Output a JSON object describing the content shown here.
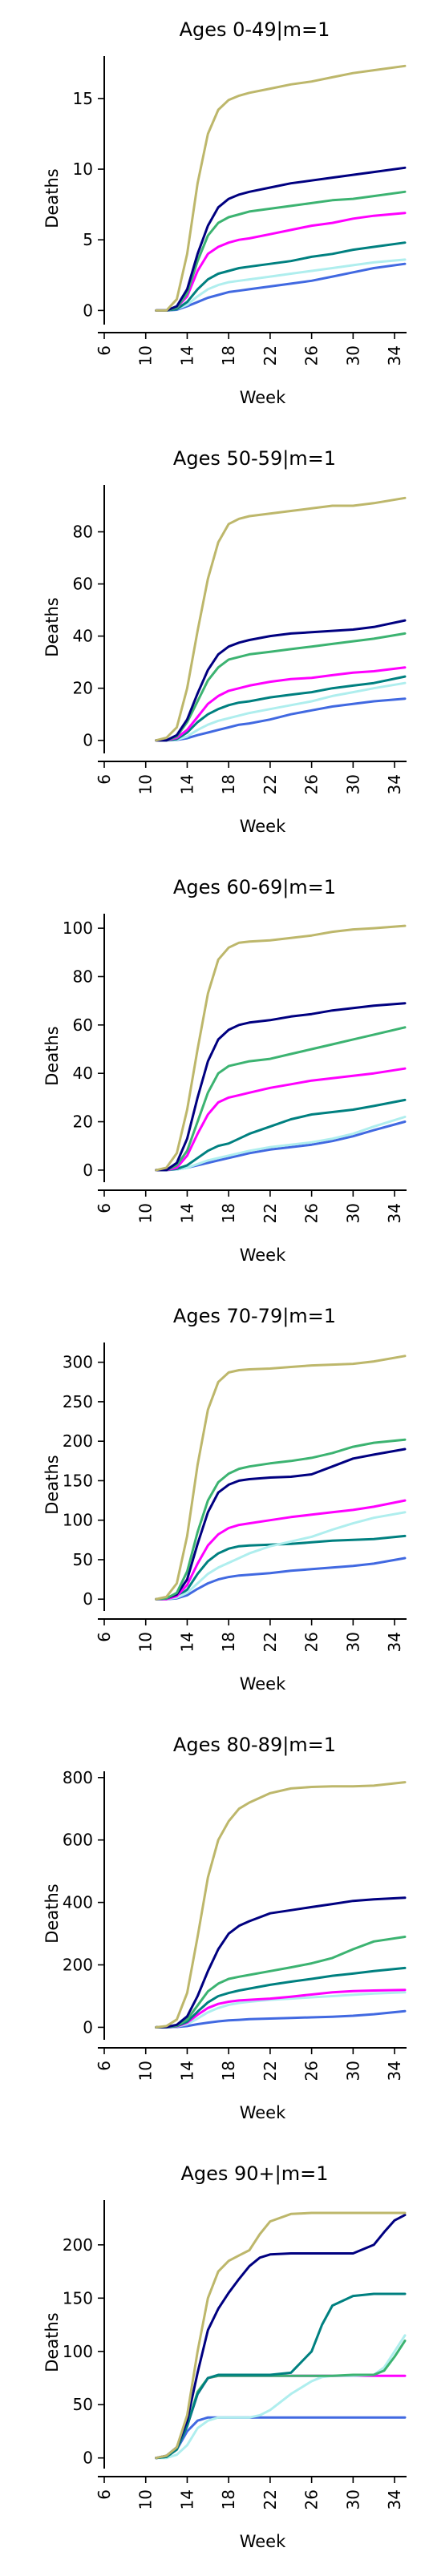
{
  "chart_data": [
    {
      "type": "line",
      "title": "Ages 0-49|m=1",
      "xlabel": "Week",
      "ylabel": "Deaths",
      "xlim": [
        6,
        35
      ],
      "ylim": [
        -1,
        18
      ],
      "xticks": [
        "6",
        "10",
        "14",
        "18",
        "22",
        "26",
        "30",
        "34"
      ],
      "yticks": [
        0,
        5,
        10,
        15
      ],
      "x": [
        11,
        12,
        13,
        14,
        15,
        16,
        17,
        18,
        19,
        20,
        22,
        24,
        26,
        28,
        30,
        32,
        35
      ],
      "series": [
        {
          "color": "#bdb76b",
          "values": [
            0,
            0,
            0.8,
            4.0,
            9.0,
            12.5,
            14.2,
            14.9,
            15.2,
            15.4,
            15.7,
            16.0,
            16.2,
            16.5,
            16.8,
            17.0,
            17.3
          ]
        },
        {
          "color": "#000080",
          "values": [
            0,
            0,
            0.3,
            1.5,
            4.0,
            6.0,
            7.3,
            7.9,
            8.2,
            8.4,
            8.7,
            9.0,
            9.2,
            9.4,
            9.6,
            9.8,
            10.1
          ]
        },
        {
          "color": "#3cb371",
          "values": [
            0,
            0,
            0.2,
            1.2,
            3.5,
            5.3,
            6.2,
            6.6,
            6.8,
            7.0,
            7.2,
            7.4,
            7.6,
            7.8,
            7.9,
            8.1,
            8.4
          ]
        },
        {
          "color": "#ff00ff",
          "values": [
            0,
            0,
            0.2,
            1.0,
            2.8,
            4.0,
            4.5,
            4.8,
            5.0,
            5.1,
            5.4,
            5.7,
            6.0,
            6.2,
            6.5,
            6.7,
            6.9
          ]
        },
        {
          "color": "#008080",
          "values": [
            0,
            0,
            0.1,
            0.6,
            1.5,
            2.2,
            2.6,
            2.8,
            3.0,
            3.1,
            3.3,
            3.5,
            3.8,
            4.0,
            4.3,
            4.5,
            4.8
          ]
        },
        {
          "color": "#afeeee",
          "values": [
            0,
            0,
            0.1,
            0.4,
            1.0,
            1.5,
            1.8,
            2.0,
            2.1,
            2.2,
            2.4,
            2.6,
            2.8,
            3.0,
            3.2,
            3.4,
            3.6
          ]
        },
        {
          "color": "#4169e1",
          "values": [
            0,
            0,
            0.05,
            0.3,
            0.6,
            0.9,
            1.1,
            1.3,
            1.4,
            1.5,
            1.7,
            1.9,
            2.1,
            2.4,
            2.7,
            3.0,
            3.3
          ]
        }
      ]
    },
    {
      "type": "line",
      "title": "Ages 50-59|m=1",
      "xlabel": "Week",
      "ylabel": "Deaths",
      "xlim": [
        6,
        35
      ],
      "ylim": [
        -5,
        98
      ],
      "xticks": [
        "6",
        "10",
        "14",
        "18",
        "22",
        "26",
        "30",
        "34"
      ],
      "yticks": [
        0,
        20,
        40,
        60,
        80
      ],
      "x": [
        11,
        12,
        13,
        14,
        15,
        16,
        17,
        18,
        19,
        20,
        22,
        24,
        26,
        28,
        30,
        32,
        35
      ],
      "series": [
        {
          "color": "#bdb76b",
          "values": [
            0,
            1,
            5,
            20,
            42,
            62,
            76,
            83,
            85,
            86,
            87,
            88,
            89,
            90,
            90,
            91,
            93
          ]
        },
        {
          "color": "#000080",
          "values": [
            0,
            0,
            2,
            8,
            18,
            27,
            33,
            36,
            37.5,
            38.5,
            40,
            41,
            41.5,
            42,
            42.5,
            43.5,
            46
          ]
        },
        {
          "color": "#3cb371",
          "values": [
            0,
            0,
            1.5,
            7,
            15,
            23,
            28,
            31,
            32,
            33,
            34,
            35,
            36,
            37,
            38,
            39,
            41
          ]
        },
        {
          "color": "#ff00ff",
          "values": [
            0,
            0,
            1,
            4,
            9,
            14,
            17,
            19,
            20,
            21,
            22.5,
            23.5,
            24,
            25,
            26,
            26.5,
            28
          ]
        },
        {
          "color": "#008080",
          "values": [
            0,
            0,
            0.5,
            3,
            7,
            10,
            12,
            13.5,
            14.5,
            15,
            16.5,
            17.5,
            18.5,
            20,
            21,
            22,
            24.5
          ]
        },
        {
          "color": "#afeeee",
          "values": [
            0,
            0,
            0.3,
            1.5,
            4,
            6,
            7.5,
            8.5,
            9.5,
            10.5,
            12,
            13.5,
            15,
            17,
            18.5,
            20,
            22
          ]
        },
        {
          "color": "#4169e1",
          "values": [
            0,
            0,
            0.2,
            0.8,
            2,
            3,
            4,
            5,
            6,
            6.5,
            8,
            10,
            11.5,
            13,
            14,
            15,
            16
          ]
        }
      ]
    },
    {
      "type": "line",
      "title": "Ages 60-69|m=1",
      "xlabel": "Week",
      "ylabel": "Deaths",
      "xlim": [
        6,
        35
      ],
      "ylim": [
        -5,
        106
      ],
      "xticks": [
        "6",
        "10",
        "14",
        "18",
        "22",
        "26",
        "30",
        "34"
      ],
      "yticks": [
        0,
        20,
        40,
        60,
        80,
        100
      ],
      "x": [
        11,
        12,
        13,
        14,
        15,
        16,
        17,
        18,
        19,
        20,
        22,
        24,
        26,
        28,
        30,
        32,
        35
      ],
      "series": [
        {
          "color": "#bdb76b",
          "values": [
            0,
            1,
            7,
            25,
            50,
            73,
            87,
            92,
            94,
            94.5,
            95,
            96,
            97,
            98.5,
            99.5,
            100,
            101
          ]
        },
        {
          "color": "#000080",
          "values": [
            0,
            0,
            3,
            13,
            30,
            45,
            54,
            58,
            60,
            61,
            62,
            63.5,
            64.5,
            66,
            67,
            68,
            69
          ]
        },
        {
          "color": "#3cb371",
          "values": [
            0,
            0,
            2,
            8,
            20,
            32,
            40,
            43,
            44,
            45,
            46,
            48,
            50,
            52,
            54,
            56,
            59
          ]
        },
        {
          "color": "#ff00ff",
          "values": [
            0,
            0,
            1,
            6,
            15,
            23,
            28,
            30,
            31,
            32,
            34,
            35.5,
            37,
            38,
            39,
            40,
            42
          ]
        },
        {
          "color": "#008080",
          "values": [
            0,
            0,
            0.5,
            2,
            5,
            8,
            10,
            11,
            13,
            15,
            18,
            21,
            23,
            24,
            25,
            26.5,
            29
          ]
        },
        {
          "color": "#afeeee",
          "values": [
            0,
            0,
            0.3,
            1,
            2.5,
            4,
            5,
            6,
            7,
            8,
            9.5,
            10.5,
            11.5,
            13,
            15,
            18,
            22
          ]
        },
        {
          "color": "#4169e1",
          "values": [
            0,
            0,
            0.3,
            1,
            2,
            3,
            4,
            5,
            6,
            7,
            8.5,
            9.5,
            10.5,
            12,
            14,
            16.5,
            20
          ]
        }
      ]
    },
    {
      "type": "line",
      "title": "Ages 70-79|m=1",
      "xlabel": "Week",
      "ylabel": "Deaths",
      "xlim": [
        6,
        35
      ],
      "ylim": [
        -15,
        325
      ],
      "xticks": [
        "6",
        "10",
        "14",
        "18",
        "22",
        "26",
        "30",
        "34"
      ],
      "yticks": [
        0,
        50,
        100,
        150,
        200,
        250,
        300
      ],
      "x": [
        11,
        12,
        13,
        14,
        15,
        16,
        17,
        18,
        19,
        20,
        22,
        24,
        26,
        28,
        30,
        32,
        35
      ],
      "series": [
        {
          "color": "#bdb76b",
          "values": [
            0,
            3,
            20,
            80,
            170,
            240,
            275,
            287,
            290,
            291,
            292,
            294,
            296,
            297,
            298,
            301,
            308
          ]
        },
        {
          "color": "#3cb371",
          "values": [
            0,
            1,
            8,
            35,
            85,
            125,
            148,
            159,
            165,
            168,
            172,
            175,
            179,
            185,
            193,
            198,
            202
          ]
        },
        {
          "color": "#000080",
          "values": [
            0,
            1,
            6,
            25,
            70,
            110,
            135,
            145,
            150,
            152,
            154,
            155,
            158,
            168,
            178,
            183,
            190
          ]
        },
        {
          "color": "#ff00ff",
          "values": [
            0,
            0,
            4,
            18,
            45,
            68,
            82,
            90,
            94,
            96,
            100,
            104,
            107,
            110,
            113,
            117,
            125
          ]
        },
        {
          "color": "#afeeee",
          "values": [
            0,
            0,
            2,
            8,
            20,
            32,
            40,
            46,
            52,
            58,
            67,
            73,
            79,
            88,
            96,
            103,
            110
          ]
        },
        {
          "color": "#008080",
          "values": [
            0,
            0,
            3,
            12,
            32,
            48,
            58,
            64,
            67,
            68,
            69,
            70,
            72,
            74,
            75,
            76,
            80
          ]
        },
        {
          "color": "#4169e1",
          "values": [
            0,
            0,
            1,
            5,
            13,
            20,
            25,
            28,
            30,
            31,
            33,
            36,
            38,
            40,
            42,
            45,
            52
          ]
        }
      ]
    },
    {
      "type": "line",
      "title": "Ages 80-89|m=1",
      "xlabel": "Week",
      "ylabel": "Deaths",
      "xlim": [
        6,
        35
      ],
      "ylim": [
        -40,
        820
      ],
      "xticks": [
        "6",
        "10",
        "14",
        "18",
        "22",
        "26",
        "30",
        "34"
      ],
      "yticks": [
        0,
        200,
        400,
        600,
        800
      ],
      "x": [
        11,
        12,
        13,
        14,
        15,
        16,
        17,
        18,
        19,
        20,
        22,
        24,
        26,
        28,
        30,
        32,
        35
      ],
      "series": [
        {
          "color": "#bdb76b",
          "values": [
            0,
            4,
            25,
            110,
            290,
            480,
            600,
            660,
            700,
            720,
            750,
            765,
            770,
            772,
            772,
            774,
            785
          ]
        },
        {
          "color": "#000080",
          "values": [
            0,
            1,
            8,
            35,
            100,
            180,
            250,
            300,
            325,
            340,
            365,
            375,
            385,
            395,
            405,
            410,
            415
          ]
        },
        {
          "color": "#3cb371",
          "values": [
            0,
            1,
            5,
            25,
            70,
            115,
            140,
            155,
            162,
            168,
            180,
            192,
            205,
            222,
            250,
            275,
            290
          ]
        },
        {
          "color": "#008080",
          "values": [
            0,
            0,
            4,
            18,
            50,
            80,
            100,
            110,
            118,
            124,
            136,
            146,
            155,
            165,
            172,
            180,
            190
          ]
        },
        {
          "color": "#ff00ff",
          "values": [
            0,
            0,
            3,
            15,
            40,
            62,
            75,
            82,
            86,
            88,
            92,
            98,
            105,
            112,
            116,
            118,
            120
          ]
        },
        {
          "color": "#afeeee",
          "values": [
            0,
            0,
            2,
            10,
            28,
            48,
            62,
            72,
            78,
            82,
            88,
            92,
            96,
            100,
            104,
            108,
            112
          ]
        },
        {
          "color": "#4169e1",
          "values": [
            0,
            0,
            1,
            4,
            10,
            15,
            19,
            22,
            24,
            26,
            28,
            30,
            32,
            34,
            37,
            42,
            52
          ]
        }
      ]
    },
    {
      "type": "line",
      "title": "Ages 90+|m=1",
      "xlabel": "Week",
      "ylabel": "Deaths",
      "xlim": [
        6,
        35
      ],
      "ylim": [
        -10,
        242
      ],
      "xticks": [
        "6",
        "10",
        "14",
        "18",
        "22",
        "26",
        "30",
        "34"
      ],
      "yticks": [
        0,
        50,
        100,
        150,
        200
      ],
      "x": [
        11,
        12,
        13,
        14,
        15,
        16,
        17,
        18,
        19,
        20,
        21,
        22,
        24,
        26,
        27,
        28,
        30,
        32,
        33,
        34,
        35
      ],
      "series": [
        {
          "color": "#bdb76b",
          "values": [
            0,
            2,
            10,
            40,
            100,
            150,
            175,
            185,
            190,
            195,
            210,
            222,
            229,
            230,
            230,
            230,
            230,
            230,
            230,
            230,
            230
          ]
        },
        {
          "color": "#000080",
          "values": [
            0,
            2,
            10,
            35,
            80,
            120,
            140,
            155,
            168,
            180,
            188,
            191,
            192,
            192,
            192,
            192,
            192,
            200,
            212,
            223,
            228
          ]
        },
        {
          "color": "#008080",
          "values": [
            0,
            1,
            8,
            30,
            60,
            75,
            78,
            78,
            78,
            78,
            78,
            78,
            80,
            100,
            125,
            143,
            152,
            154,
            154,
            154,
            154
          ]
        },
        {
          "color": "#3cb371",
          "values": [
            0,
            1,
            8,
            30,
            62,
            75,
            77,
            77,
            77,
            77,
            77,
            77,
            77,
            77,
            77,
            77,
            78,
            78,
            82,
            95,
            110
          ]
        },
        {
          "color": "#afeeee",
          "values": [
            0,
            0,
            3,
            12,
            28,
            35,
            38,
            38,
            38,
            38,
            40,
            45,
            60,
            72,
            76,
            77,
            77,
            78,
            85,
            100,
            115
          ]
        },
        {
          "color": "#ff00ff",
          "values": [
            0,
            1,
            8,
            30,
            60,
            75,
            77,
            77,
            77,
            77,
            77,
            77,
            77,
            77,
            77,
            77,
            77,
            77,
            77,
            77,
            77
          ]
        },
        {
          "color": "#4169e1",
          "values": [
            0,
            1,
            8,
            25,
            35,
            38,
            38,
            38,
            38,
            38,
            38,
            38,
            38,
            38,
            38,
            38,
            38,
            38,
            38,
            38,
            38
          ]
        }
      ]
    }
  ]
}
